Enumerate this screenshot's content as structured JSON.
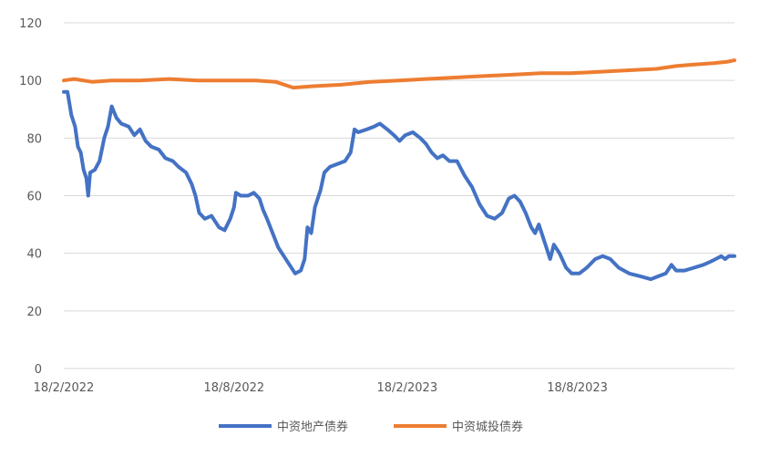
{
  "chart_data": {
    "type": "line",
    "title": "",
    "xlabel": "",
    "ylabel": "",
    "ylim": [
      0,
      120
    ],
    "y_ticks": [
      "0",
      "20",
      "40",
      "60",
      "80",
      "100",
      "120"
    ],
    "x_tick_labels": [
      "18/2/2022",
      "18/8/2022",
      "18/2/2023",
      "18/8/2023"
    ],
    "x_tick_dates": [
      "2022-02-18",
      "2022-08-18",
      "2023-02-18",
      "2023-08-18"
    ],
    "x_range": [
      "2022-02-18",
      "2024-02-01"
    ],
    "grid": "horizontal",
    "legend_position": "bottom",
    "series": [
      {
        "name": "中资地产债券",
        "color": "#4472C4",
        "points": [
          [
            "2022-02-18",
            96
          ],
          [
            "2022-02-22",
            96
          ],
          [
            "2022-02-26",
            88
          ],
          [
            "2022-03-02",
            84
          ],
          [
            "2022-03-05",
            77
          ],
          [
            "2022-03-08",
            75
          ],
          [
            "2022-03-11",
            69
          ],
          [
            "2022-03-14",
            66
          ],
          [
            "2022-03-16",
            60
          ],
          [
            "2022-03-18",
            68
          ],
          [
            "2022-03-23",
            69
          ],
          [
            "2022-03-28",
            72
          ],
          [
            "2022-04-02",
            80
          ],
          [
            "2022-04-06",
            84
          ],
          [
            "2022-04-10",
            91
          ],
          [
            "2022-04-15",
            87
          ],
          [
            "2022-04-20",
            85
          ],
          [
            "2022-04-28",
            84
          ],
          [
            "2022-05-04",
            81
          ],
          [
            "2022-05-10",
            83
          ],
          [
            "2022-05-16",
            79
          ],
          [
            "2022-05-22",
            77
          ],
          [
            "2022-05-30",
            76
          ],
          [
            "2022-06-06",
            73
          ],
          [
            "2022-06-14",
            72
          ],
          [
            "2022-06-20",
            70
          ],
          [
            "2022-06-28",
            68
          ],
          [
            "2022-07-04",
            64
          ],
          [
            "2022-07-08",
            60
          ],
          [
            "2022-07-12",
            54
          ],
          [
            "2022-07-18",
            52
          ],
          [
            "2022-07-25",
            53
          ],
          [
            "2022-08-02",
            49
          ],
          [
            "2022-08-08",
            48
          ],
          [
            "2022-08-14",
            52
          ],
          [
            "2022-08-18",
            56
          ],
          [
            "2022-08-20",
            61
          ],
          [
            "2022-08-25",
            60
          ],
          [
            "2022-09-02",
            60
          ],
          [
            "2022-09-08",
            61
          ],
          [
            "2022-09-14",
            59
          ],
          [
            "2022-09-18",
            55
          ],
          [
            "2022-09-22",
            52
          ],
          [
            "2022-09-28",
            47
          ],
          [
            "2022-10-04",
            42
          ],
          [
            "2022-10-10",
            39
          ],
          [
            "2022-10-16",
            36
          ],
          [
            "2022-10-22",
            33
          ],
          [
            "2022-10-28",
            34
          ],
          [
            "2022-11-01",
            38
          ],
          [
            "2022-11-04",
            49
          ],
          [
            "2022-11-08",
            47
          ],
          [
            "2022-11-12",
            56
          ],
          [
            "2022-11-18",
            62
          ],
          [
            "2022-11-22",
            68
          ],
          [
            "2022-11-28",
            70
          ],
          [
            "2022-12-06",
            71
          ],
          [
            "2022-12-14",
            72
          ],
          [
            "2022-12-20",
            75
          ],
          [
            "2022-12-24",
            83
          ],
          [
            "2022-12-28",
            82
          ],
          [
            "2023-01-06",
            83
          ],
          [
            "2023-01-14",
            84
          ],
          [
            "2023-01-20",
            85
          ],
          [
            "2023-01-28",
            83
          ],
          [
            "2023-02-04",
            81
          ],
          [
            "2023-02-10",
            79
          ],
          [
            "2023-02-16",
            81
          ],
          [
            "2023-02-24",
            82
          ],
          [
            "2023-03-04",
            80
          ],
          [
            "2023-03-10",
            78
          ],
          [
            "2023-03-16",
            75
          ],
          [
            "2023-03-22",
            73
          ],
          [
            "2023-03-28",
            74
          ],
          [
            "2023-04-04",
            72
          ],
          [
            "2023-04-12",
            72
          ],
          [
            "2023-04-20",
            67
          ],
          [
            "2023-04-28",
            63
          ],
          [
            "2023-05-06",
            57
          ],
          [
            "2023-05-14",
            53
          ],
          [
            "2023-05-22",
            52
          ],
          [
            "2023-05-30",
            54
          ],
          [
            "2023-06-06",
            59
          ],
          [
            "2023-06-12",
            60
          ],
          [
            "2023-06-18",
            58
          ],
          [
            "2023-06-24",
            54
          ],
          [
            "2023-06-30",
            49
          ],
          [
            "2023-07-04",
            47
          ],
          [
            "2023-07-08",
            50
          ],
          [
            "2023-07-14",
            44
          ],
          [
            "2023-07-20",
            38
          ],
          [
            "2023-07-24",
            43
          ],
          [
            "2023-07-30",
            40
          ],
          [
            "2023-08-06",
            35
          ],
          [
            "2023-08-12",
            33
          ],
          [
            "2023-08-20",
            33
          ],
          [
            "2023-08-28",
            35
          ],
          [
            "2023-09-06",
            38
          ],
          [
            "2023-09-14",
            39
          ],
          [
            "2023-09-22",
            38
          ],
          [
            "2023-10-01",
            35
          ],
          [
            "2023-10-12",
            33
          ],
          [
            "2023-10-24",
            32
          ],
          [
            "2023-11-04",
            31
          ],
          [
            "2023-11-12",
            32
          ],
          [
            "2023-11-20",
            33
          ],
          [
            "2023-11-26",
            36
          ],
          [
            "2023-12-01",
            34
          ],
          [
            "2023-12-10",
            34
          ],
          [
            "2023-12-20",
            35
          ],
          [
            "2023-12-30",
            36
          ],
          [
            "2024-01-06",
            37
          ],
          [
            "2024-01-12",
            38
          ],
          [
            "2024-01-18",
            39
          ],
          [
            "2024-01-22",
            38
          ],
          [
            "2024-01-26",
            39
          ],
          [
            "2024-02-01",
            39
          ]
        ]
      },
      {
        "name": "中资城投债券",
        "color": "#ED7D31",
        "points": [
          [
            "2022-02-18",
            100
          ],
          [
            "2022-03-01",
            100.5
          ],
          [
            "2022-03-20",
            99.5
          ],
          [
            "2022-04-10",
            100
          ],
          [
            "2022-05-10",
            100
          ],
          [
            "2022-06-10",
            100.5
          ],
          [
            "2022-07-10",
            100
          ],
          [
            "2022-08-10",
            100
          ],
          [
            "2022-09-10",
            100
          ],
          [
            "2022-10-01",
            99.5
          ],
          [
            "2022-10-20",
            97.5
          ],
          [
            "2022-11-10",
            98
          ],
          [
            "2022-12-10",
            98.5
          ],
          [
            "2023-01-10",
            99.5
          ],
          [
            "2023-02-10",
            100
          ],
          [
            "2023-03-10",
            100.5
          ],
          [
            "2023-04-10",
            101
          ],
          [
            "2023-05-10",
            101.5
          ],
          [
            "2023-06-10",
            102
          ],
          [
            "2023-07-10",
            102.5
          ],
          [
            "2023-08-10",
            102.5
          ],
          [
            "2023-09-10",
            103
          ],
          [
            "2023-10-10",
            103.5
          ],
          [
            "2023-11-10",
            104
          ],
          [
            "2023-12-01",
            105
          ],
          [
            "2023-12-20",
            105.5
          ],
          [
            "2024-01-10",
            106
          ],
          [
            "2024-01-25",
            106.5
          ],
          [
            "2024-02-01",
            107
          ]
        ]
      }
    ]
  }
}
